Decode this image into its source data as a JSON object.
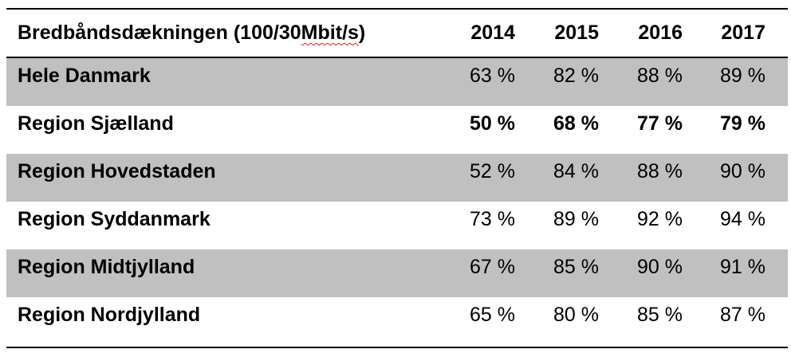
{
  "table": {
    "header_prefix": "Bredbåndsdækningen (100/30 ",
    "header_unit": "Mbit/s",
    "header_suffix": ")",
    "years": [
      "2014",
      "2015",
      "2016",
      "2017"
    ],
    "rows": [
      {
        "label": "Hele Danmark",
        "values": [
          "63 %",
          "82 %",
          "88 %",
          "89 %"
        ],
        "shaded": true,
        "bold": false
      },
      {
        "label": "Region Sjælland",
        "values": [
          "50 %",
          "68 %",
          "77 %",
          "79 %"
        ],
        "shaded": false,
        "bold": true
      },
      {
        "label": "Region Hovedstaden",
        "values": [
          "52 %",
          "84 %",
          "88 %",
          "90 %"
        ],
        "shaded": true,
        "bold": false
      },
      {
        "label": "Region Syddanmark",
        "values": [
          "73 %",
          "89 %",
          "92 %",
          "94 %"
        ],
        "shaded": false,
        "bold": false
      },
      {
        "label": "Region Midtjylland",
        "values": [
          "67 %",
          "85 %",
          "90 %",
          "91 %"
        ],
        "shaded": true,
        "bold": false
      },
      {
        "label": "Region Nordjylland",
        "values": [
          "65 %",
          "80 %",
          "85 %",
          "87 %"
        ],
        "shaded": false,
        "bold": false
      }
    ]
  },
  "colors": {
    "row_shade": "#c0c0c0",
    "rule": "#000000",
    "spellcheck_underline": "#dd2222"
  }
}
